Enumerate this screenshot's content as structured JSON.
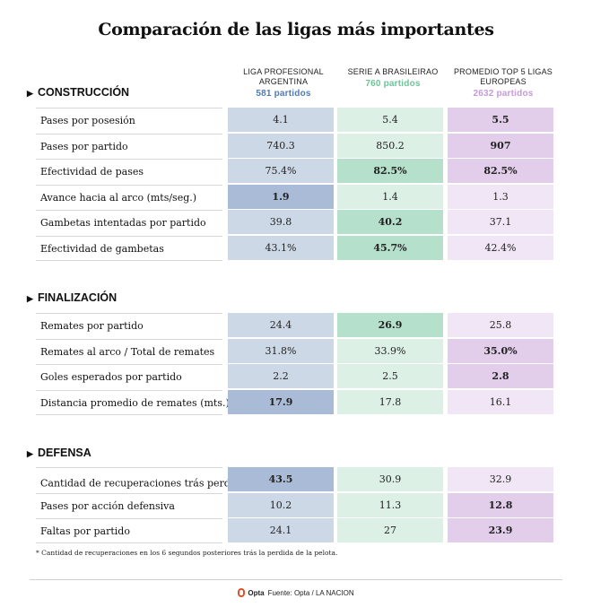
{
  "title": "Comparación de las ligas más importantes",
  "columns": [
    {
      "name": "LIGA PROFESIONAL ARGENTINA",
      "count": "581 partidos",
      "color": "#4f7ab8"
    },
    {
      "name": "SERIE A BRASILEIRAO",
      "count": "760 partidos",
      "color": "#6cc59a"
    },
    {
      "name": "PROMEDIO TOP 5 LIGAS EUROPEAS",
      "count": "2632 partidos",
      "color": "#c79ad9"
    }
  ],
  "palette": {
    "arg_dark": "#a9bbd6",
    "arg_light": "#cdd8e7",
    "bra_dark": "#b5e0cb",
    "bra_light": "#dcf0e6",
    "eur_dark": "#e2cdea",
    "eur_light": "#f1e6f5"
  },
  "chart_data": {
    "type": "table",
    "title": "Comparación de las ligas más importantes",
    "columns": [
      "LIGA PROFESIONAL ARGENTINA",
      "SERIE A BRASILEIRAO",
      "PROMEDIO TOP 5 LIGAS EUROPEAS"
    ],
    "sections": [
      {
        "name": "CONSTRUCCIÓN",
        "rows": [
          {
            "label": "Pases por posesión",
            "values": [
              "4.1",
              "5.4",
              "5.5"
            ],
            "best": 2
          },
          {
            "label": "Pases por partido",
            "values": [
              "740.3",
              "850.2",
              "907"
            ],
            "best": 2
          },
          {
            "label": "Efectividad de pases",
            "values": [
              "75.4%",
              "82.5%",
              "82.5%"
            ],
            "best": [
              1,
              2
            ]
          },
          {
            "label": "Avance hacia al arco (mts/seg.)",
            "values": [
              "1.9",
              "1.4",
              "1.3"
            ],
            "best": 0
          },
          {
            "label": "Gambetas intentadas por partido",
            "values": [
              "39.8",
              "40.2",
              "37.1"
            ],
            "best": 1
          },
          {
            "label": "Efectividad de gambetas",
            "values": [
              "43.1%",
              "45.7%",
              "42.4%"
            ],
            "best": 1
          }
        ]
      },
      {
        "name": "FINALIZACIÓN",
        "rows": [
          {
            "label": "Remates por partido",
            "values": [
              "24.4",
              "26.9",
              "25.8"
            ],
            "best": 1
          },
          {
            "label": "Remates al arco / Total de remates",
            "values": [
              "31.8%",
              "33.9%",
              "35.0%"
            ],
            "best": 2
          },
          {
            "label": "Goles esperados por partido",
            "values": [
              "2.2",
              "2.5",
              "2.8"
            ],
            "best": 2
          },
          {
            "label": "Distancia promedio de remates (mts.)",
            "values": [
              "17.9",
              "17.8",
              "16.1"
            ],
            "best": 0
          }
        ]
      },
      {
        "name": "DEFENSA",
        "rows": [
          {
            "label": "Cantidad de recuperaciones trás perdida",
            "sup": "*",
            "values": [
              "43.5",
              "30.9",
              "32.9"
            ],
            "best": 0
          },
          {
            "label": "Pases por acción defensiva",
            "values": [
              "10.2",
              "11.3",
              "12.8"
            ],
            "best": 2
          },
          {
            "label": "Faltas por partido",
            "values": [
              "24.1",
              "27",
              "23.9"
            ],
            "best": 2
          }
        ]
      }
    ]
  },
  "footnote": "* Cantidad de recuperaciones en los 6 segundos posteriores trás la perdida de la pelota.",
  "source": {
    "brand": "Opta",
    "text": "Fuente: Opta / LA NACION"
  }
}
